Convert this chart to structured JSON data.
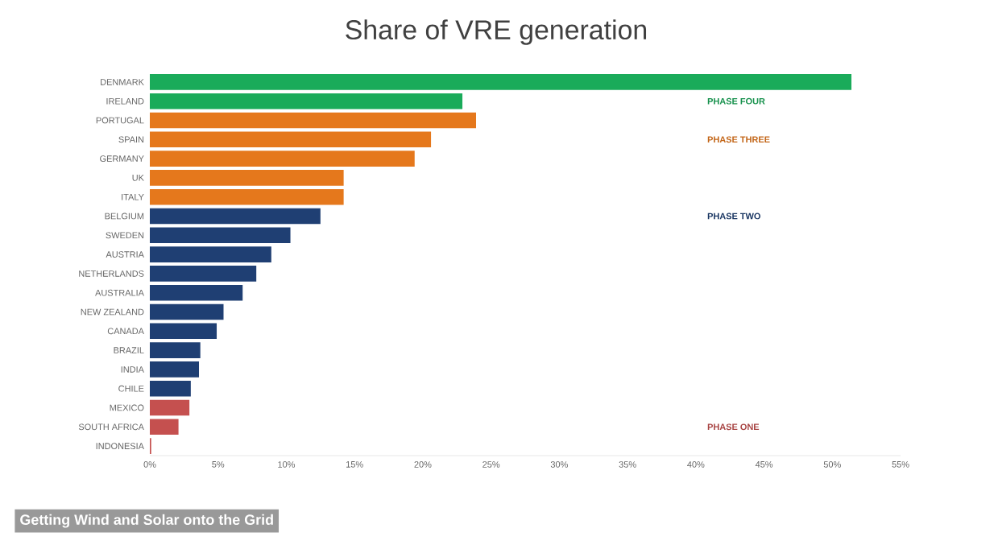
{
  "chart_data": {
    "type": "bar",
    "orientation": "horizontal",
    "title": "Share of VRE generation",
    "categories": [
      "DENMARK",
      "IRELAND",
      "PORTUGAL",
      "SPAIN",
      "GERMANY",
      "UK",
      "ITALY",
      "BELGIUM",
      "SWEDEN",
      "AUSTRIA",
      "NETHERLANDS",
      "AUSTRALIA",
      "NEW ZEALAND",
      "CANADA",
      "BRAZIL",
      "INDIA",
      "CHILE",
      "MEXICO",
      "SOUTH AFRICA",
      "INDONESIA"
    ],
    "values": [
      51.4,
      22.9,
      23.9,
      20.6,
      19.4,
      14.2,
      14.2,
      12.5,
      10.3,
      8.9,
      7.8,
      6.8,
      5.4,
      4.9,
      3.7,
      3.6,
      3.0,
      2.9,
      2.1,
      0.1
    ],
    "colors": [
      "#1aab5a",
      "#1aab5a",
      "#e5781c",
      "#e5781c",
      "#e5781c",
      "#e5781c",
      "#e5781c",
      "#1f3f73",
      "#1f3f73",
      "#1f3f73",
      "#1f3f73",
      "#1f3f73",
      "#1f3f73",
      "#1f3f73",
      "#1f3f73",
      "#1f3f73",
      "#1f3f73",
      "#c5504f",
      "#c5504f",
      "#c5504f"
    ],
    "xlim": [
      0,
      55
    ],
    "xticks": [
      {
        "value": 0,
        "label": "0%"
      },
      {
        "value": 5,
        "label": "5%"
      },
      {
        "value": 10,
        "label": "10%"
      },
      {
        "value": 15,
        "label": "15%"
      },
      {
        "value": 20,
        "label": "20%"
      },
      {
        "value": 25,
        "label": "25%"
      },
      {
        "value": 30,
        "label": "30%"
      },
      {
        "value": 35,
        "label": "35%"
      },
      {
        "value": 40,
        "label": "40%"
      },
      {
        "value": 45,
        "label": "45%"
      },
      {
        "value": 50,
        "label": "50%"
      },
      {
        "value": 55,
        "label": "55%"
      }
    ],
    "annotations": [
      "PHASE FOUR",
      "PHASE THREE",
      "PHASE TWO",
      "PHASE ONE",
      "Getting Wind and Solar onto the Grid"
    ]
  }
}
